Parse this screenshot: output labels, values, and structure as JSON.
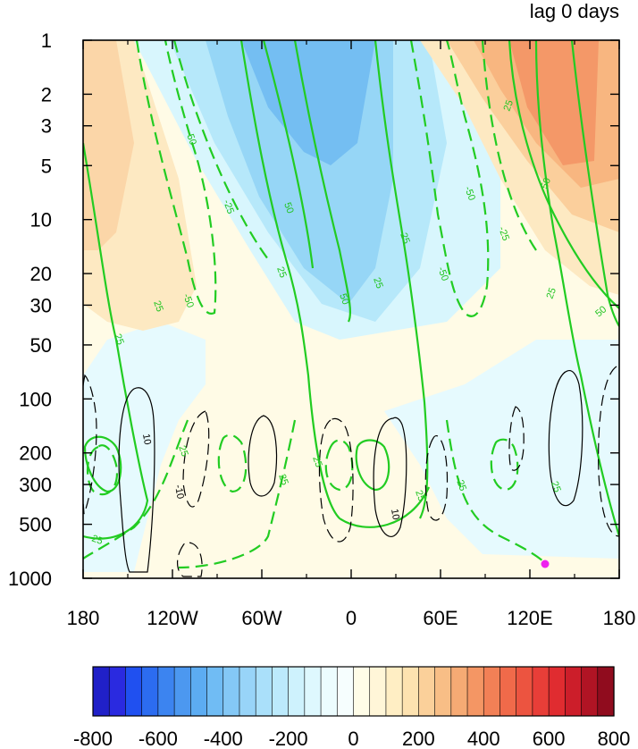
{
  "title_right": "lag 0 days",
  "chart_data": {
    "type": "heatmap",
    "x_tick_labels": [
      "180",
      "120W",
      "60W",
      "0",
      "60E",
      "120E",
      "180"
    ],
    "y_tick_labels": [
      "1",
      "2",
      "3",
      "5",
      "10",
      "20",
      "30",
      "50",
      "100",
      "200",
      "300",
      "500",
      "1000"
    ],
    "y_tick_values": [
      1,
      2,
      3,
      5,
      10,
      20,
      30,
      50,
      100,
      200,
      300,
      500,
      1000
    ],
    "y_scale": "log, inverted (1 at top, 1000 at bottom)",
    "x_range": [
      "180",
      "180"
    ],
    "y_range": [
      1,
      1000
    ],
    "colorbar": {
      "levels": [
        -800,
        -750,
        -700,
        -650,
        -600,
        -550,
        -500,
        -450,
        -400,
        -350,
        -300,
        -250,
        -200,
        -150,
        -100,
        -50,
        0,
        50,
        100,
        150,
        200,
        250,
        300,
        350,
        400,
        450,
        500,
        550,
        600,
        650,
        700,
        750,
        800
      ],
      "tick_labels": [
        "-800",
        "-600",
        "-400",
        "-200",
        "0",
        "200",
        "400",
        "600",
        "800"
      ],
      "colors": [
        "#2020c8",
        "#2a2ae0",
        "#2050f0",
        "#2c6cf0",
        "#3c84f0",
        "#4c98f0",
        "#5cacf2",
        "#70bcf4",
        "#84c8f6",
        "#98d4f8",
        "#aae0fa",
        "#bceafc",
        "#cef2fd",
        "#def8fe",
        "#ecfcfe",
        "#f6fefe",
        "#fffde8",
        "#fff6d8",
        "#ffeec4",
        "#fde2b0",
        "#fbd09a",
        "#f8be86",
        "#f6aa74",
        "#f49664",
        "#f28056",
        "#f06a4a",
        "#ec5440",
        "#e83e38",
        "#e02c30",
        "#cc1e2a",
        "#b01424",
        "#900c1e"
      ]
    },
    "shading_fields": [
      {
        "name": "positive-west",
        "sign": "+",
        "approx_value": 150,
        "region": "180-110W, 1-40 hPa"
      },
      {
        "name": "negative-central",
        "sign": "-",
        "approx_value": -300,
        "region": "90W-60E, 1-60 hPa"
      },
      {
        "name": "positive-east",
        "sign": "+",
        "approx_value": 300,
        "region": "90E-180, 1-30 hPa"
      },
      {
        "name": "negative-lower",
        "sign": "-",
        "approx_value": -25,
        "region": "180-140W and 60E-180, 200-900 hPa"
      },
      {
        "name": "positive-lower",
        "sign": "+",
        "approx_value": 25,
        "region": "140W-60E, 100-1000 hPa"
      }
    ],
    "green_contour_labels": [
      "-50",
      "-25",
      "25",
      "50"
    ],
    "black_contour_labels": [
      "10",
      "-10"
    ],
    "marker": {
      "symbol": "dot",
      "color": "#ee22ee",
      "lon": "130E",
      "pressure": 850
    }
  }
}
